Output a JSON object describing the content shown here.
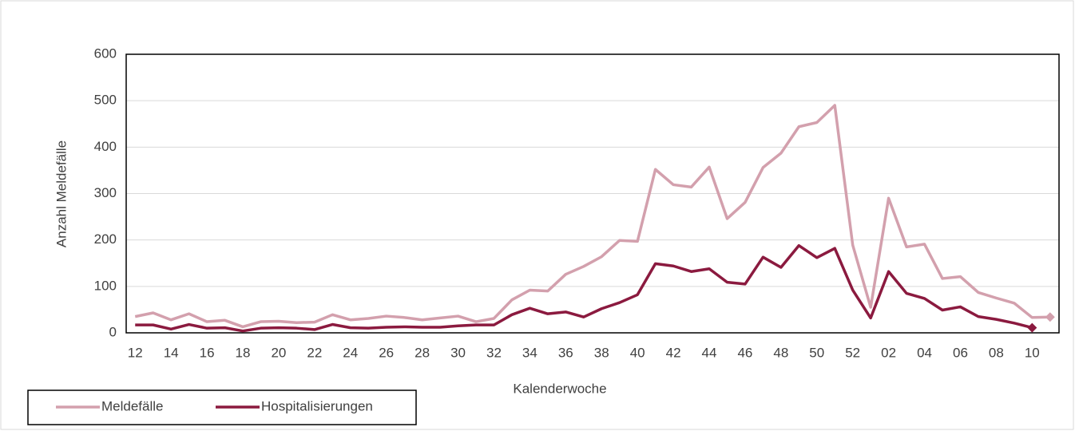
{
  "chart_data": {
    "type": "line",
    "x_label": "Kalenderwoche",
    "y_label": "Anzahl Meldefälle",
    "categories": [
      "12",
      null,
      "14",
      null,
      "16",
      null,
      "18",
      null,
      "20",
      null,
      "22",
      null,
      "24",
      null,
      "26",
      null,
      "28",
      null,
      "30",
      null,
      "32",
      null,
      "34",
      null,
      "36",
      null,
      "38",
      null,
      "40",
      null,
      "42",
      null,
      "44",
      null,
      "46",
      null,
      "48",
      null,
      "50",
      null,
      "52",
      null,
      "02",
      null,
      "04",
      null,
      "06",
      null,
      "08",
      null,
      "10",
      null
    ],
    "series": [
      {
        "name": "Meldefälle",
        "color": "#d3a0ad",
        "values": [
          35,
          43,
          28,
          41,
          24,
          27,
          13,
          24,
          25,
          22,
          23,
          39,
          28,
          31,
          36,
          33,
          28,
          32,
          36,
          24,
          31,
          71,
          92,
          90,
          126,
          143,
          164,
          199,
          197,
          352,
          319,
          314,
          357,
          246,
          281,
          356,
          387,
          444,
          453,
          490,
          189,
          55,
          290,
          185,
          191,
          117,
          121,
          87,
          75,
          64,
          33,
          34
        ]
      },
      {
        "name": "Hospitalisierungen",
        "color": "#8b1a3f",
        "values": [
          17,
          17,
          8,
          18,
          10,
          11,
          4,
          10,
          11,
          10,
          7,
          18,
          11,
          10,
          12,
          13,
          12,
          12,
          15,
          17,
          17,
          39,
          53,
          41,
          45,
          34,
          52,
          65,
          82,
          149,
          144,
          132,
          138,
          109,
          105,
          163,
          141,
          188,
          162,
          182,
          92,
          32,
          132,
          85,
          74,
          49,
          56,
          35,
          29,
          21,
          11,
          null
        ]
      }
    ],
    "ylim": [
      0,
      600
    ],
    "yticks": [
      0,
      100,
      200,
      300,
      400,
      500,
      600
    ],
    "grid": true
  }
}
